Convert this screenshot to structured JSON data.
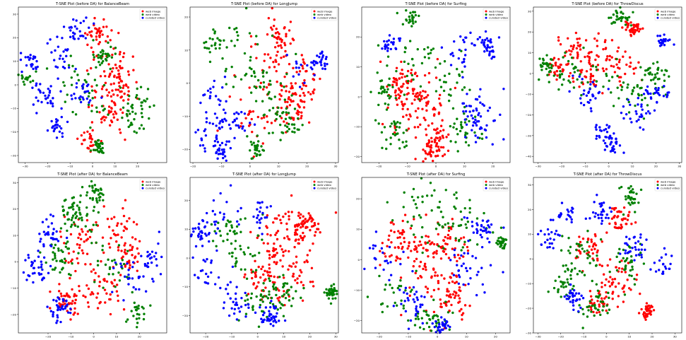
{
  "chart_data": [
    {
      "type": "scatter",
      "title": "T-SNE Plot (before DA) for BalanceBeam",
      "xlim": [
        -33,
        33
      ],
      "ylim": [
        -33,
        33
      ],
      "xticks": [
        -30,
        -20,
        -10,
        0,
        10,
        20
      ],
      "yticks": [
        -30,
        -20,
        -10,
        0,
        10,
        20,
        30
      ],
      "legend_position": "top-right",
      "series": [
        {
          "name": "web image",
          "color": "#ff0000",
          "clusters": [
            [
              10,
              10,
              6
            ],
            [
              7,
              -2,
              6
            ],
            [
              13,
              0,
              5
            ],
            [
              8,
              -13,
              5
            ],
            [
              -2,
              -24,
              3
            ],
            [
              2,
              22,
              4
            ]
          ],
          "count": 180
        },
        {
          "name": "web video",
          "color": "#008000",
          "clusters": [
            [
              0,
              -8,
              7
            ],
            [
              -8,
              5,
              6
            ],
            [
              18,
              -15,
              5
            ],
            [
              5,
              13,
              4
            ],
            [
              22,
              -8,
              5
            ],
            [
              -30,
              3,
              2
            ],
            [
              2,
              -26,
              2
            ]
          ],
          "count": 160
        },
        {
          "name": "curated video",
          "color": "#0000ff",
          "clusters": [
            [
              -15,
              10,
              7
            ],
            [
              -8,
              23,
              4
            ],
            [
              -21,
              -5,
              5
            ],
            [
              -5,
              -3,
              4
            ],
            [
              -16,
              -18,
              3
            ],
            [
              -27,
              10,
              3
            ]
          ],
          "count": 150
        }
      ]
    },
    {
      "type": "scatter",
      "title": "T-SNE Plot (before DA) for LongJump",
      "xlim": [
        -21,
        31
      ],
      "ylim": [
        -24,
        23
      ],
      "xticks": [
        -20,
        -10,
        0,
        10,
        20,
        30
      ],
      "yticks": [
        -20,
        -10,
        0,
        10,
        20
      ],
      "legend_position": "top-right",
      "series": [
        {
          "name": "web image",
          "color": "#ff0000",
          "clusters": [
            [
              10,
              14,
              5
            ],
            [
              6,
              4,
              6
            ],
            [
              18,
              0,
              5
            ],
            [
              0,
              -10,
              5
            ],
            [
              14,
              -8,
              4
            ]
          ],
          "count": 190
        },
        {
          "name": "web video",
          "color": "#008000",
          "clusters": [
            [
              -3,
              8,
              6
            ],
            [
              5,
              -2,
              5
            ],
            [
              12,
              -12,
              4
            ],
            [
              2,
              -20,
              2
            ],
            [
              -12,
              12,
              3
            ]
          ],
          "count": 150
        },
        {
          "name": "curated video",
          "color": "#0000ff",
          "clusters": [
            [
              -12,
              -7,
              5
            ],
            [
              -14,
              -15,
              4
            ],
            [
              -10,
              -20,
              2
            ],
            [
              18,
              5,
              4
            ],
            [
              24,
              6,
              2
            ],
            [
              -4,
              -12,
              3
            ]
          ],
          "count": 140
        }
      ]
    },
    {
      "type": "scatter",
      "title": "T-SNE Plot (before DA) for Surfing",
      "xlim": [
        -26,
        26
      ],
      "ylim": [
        -22,
        30
      ],
      "xticks": [
        -20,
        -10,
        0,
        10,
        20
      ],
      "yticks": [
        -20,
        -10,
        0,
        10,
        20
      ],
      "legend_position": "top-right",
      "series": [
        {
          "name": "web image",
          "color": "#ff0000",
          "clusters": [
            [
              -7,
              -2,
              6
            ],
            [
              -3,
              -10,
              6
            ],
            [
              -12,
              5,
              4
            ],
            [
              0,
              -16,
              3
            ]
          ],
          "count": 200
        },
        {
          "name": "web video",
          "color": "#008000",
          "clusters": [
            [
              -5,
              12,
              7
            ],
            [
              5,
              5,
              6
            ],
            [
              -18,
              3,
              4
            ],
            [
              -9,
              26,
              2
            ],
            [
              10,
              -12,
              4
            ],
            [
              -15,
              -12,
              4
            ]
          ],
          "count": 170
        },
        {
          "name": "curated video",
          "color": "#0000ff",
          "clusters": [
            [
              13,
              -3,
              5
            ],
            [
              16,
              -10,
              4
            ],
            [
              9,
              17,
              4
            ],
            [
              18,
              17,
              3
            ],
            [
              -16,
              18,
              2
            ]
          ],
          "count": 140
        }
      ]
    },
    {
      "type": "scatter",
      "title": "T-SNE Plot (before DA) for ThrowDiscus",
      "xlim": [
        -32,
        31
      ],
      "ylim": [
        -43,
        32
      ],
      "xticks": [
        -30,
        -20,
        -10,
        0,
        10,
        20,
        30
      ],
      "yticks": [
        -40,
        -30,
        -20,
        -10,
        0,
        10,
        20,
        30
      ],
      "legend_position": "top-right",
      "series": [
        {
          "name": "web image",
          "color": "#ff0000",
          "clusters": [
            [
              -15,
              12,
              5
            ],
            [
              -5,
              9,
              6
            ],
            [
              4,
              4,
              5
            ],
            [
              -10,
              -2,
              5
            ],
            [
              11,
              22,
              3
            ],
            [
              -21,
              4,
              4
            ]
          ],
          "count": 190
        },
        {
          "name": "web video",
          "color": "#008000",
          "clusters": [
            [
              -1,
              0,
              8
            ],
            [
              -19,
              -1,
              6
            ],
            [
              13,
              -10,
              6
            ],
            [
              5,
              27,
              3
            ],
            [
              -27,
              4,
              2
            ],
            [
              20,
              0,
              4
            ]
          ],
          "count": 170
        },
        {
          "name": "curated video",
          "color": "#0000ff",
          "clusters": [
            [
              2,
              -35,
              3
            ],
            [
              -8,
              -10,
              5
            ],
            [
              12,
              -18,
              5
            ],
            [
              20,
              -10,
              4
            ],
            [
              23,
              15,
              2
            ],
            [
              -3,
              -28,
              3
            ]
          ],
          "count": 150
        }
      ]
    },
    {
      "type": "scatter",
      "title": "T-SNE Plot (after DA) for BalanceBeam",
      "xlim": [
        -33,
        32
      ],
      "ylim": [
        -27,
        32
      ],
      "xticks": [
        -20,
        -10,
        0,
        10,
        20
      ],
      "yticks": [
        -20,
        -10,
        0,
        10,
        20,
        30
      ],
      "legend_position": "top-right",
      "series": [
        {
          "name": "web image",
          "color": "#ff0000",
          "clusters": [
            [
              3,
              -10,
              6
            ],
            [
              -5,
              5,
              7
            ],
            [
              10,
              12,
              6
            ],
            [
              -12,
              -15,
              4
            ],
            [
              16,
              2,
              4
            ]
          ],
          "count": 200
        },
        {
          "name": "web video",
          "color": "#008000",
          "clusters": [
            [
              -6,
              15,
              6
            ],
            [
              0,
              25,
              4
            ],
            [
              8,
              -3,
              6
            ],
            [
              -15,
              0,
              5
            ],
            [
              20,
              -20,
              3
            ],
            [
              -10,
              20,
              3
            ]
          ],
          "count": 180
        },
        {
          "name": "curated video",
          "color": "#0000ff",
          "clusters": [
            [
              -25,
              -3,
              4
            ],
            [
              15,
              -8,
              6
            ],
            [
              25,
              0,
              4
            ],
            [
              -20,
              10,
              4
            ],
            [
              -15,
              -18,
              3
            ]
          ],
          "count": 150
        }
      ]
    },
    {
      "type": "scatter",
      "title": "T-SNE Plot (after DA) for LongJump",
      "xlim": [
        -26,
        31
      ],
      "ylim": [
        -26,
        28
      ],
      "xticks": [
        -20,
        -10,
        0,
        10,
        20,
        30
      ],
      "yticks": [
        -20,
        -10,
        0,
        10,
        20
      ],
      "legend_position": "top-right",
      "series": [
        {
          "name": "web image",
          "color": "#ff0000",
          "clusters": [
            [
              8,
              5,
              7
            ],
            [
              15,
              -5,
              6
            ],
            [
              2,
              -8,
              5
            ],
            [
              18,
              12,
              4
            ]
          ],
          "count": 210
        },
        {
          "name": "web video",
          "color": "#008000",
          "clusters": [
            [
              -5,
              0,
              7
            ],
            [
              0,
              -15,
              5
            ],
            [
              -10,
              10,
              5
            ],
            [
              28,
              -12,
              1.5
            ],
            [
              10,
              -12,
              4
            ]
          ],
          "count": 170
        },
        {
          "name": "curated video",
          "color": "#0000ff",
          "clusters": [
            [
              -14,
              15,
              5
            ],
            [
              -18,
              -5,
              5
            ],
            [
              -8,
              -15,
              4
            ],
            [
              5,
              -20,
              3
            ],
            [
              -22,
              8,
              3
            ],
            [
              0,
              15,
              4
            ]
          ],
          "count": 160
        }
      ]
    },
    {
      "type": "scatter",
      "title": "T-SNE Plot (after DA) for Surfing",
      "xlim": [
        -26,
        25
      ],
      "ylim": [
        -24,
        27
      ],
      "xticks": [
        -20,
        -10,
        0,
        10,
        20
      ],
      "yticks": [
        -20,
        -10,
        0,
        10,
        20
      ],
      "legend_position": "top-right",
      "series": [
        {
          "name": "web image",
          "color": "#ff0000",
          "clusters": [
            [
              -3,
              -5,
              7
            ],
            [
              2,
              5,
              6
            ],
            [
              -12,
              5,
              5
            ],
            [
              5,
              -12,
              5
            ]
          ],
          "count": 210
        },
        {
          "name": "web video",
          "color": "#008000",
          "clusters": [
            [
              -5,
              15,
              7
            ],
            [
              8,
              12,
              6
            ],
            [
              -15,
              -10,
              5
            ],
            [
              22,
              6,
              1.5
            ],
            [
              -2,
              -20,
              4
            ]
          ],
          "count": 170
        },
        {
          "name": "curated video",
          "color": "#0000ff",
          "clusters": [
            [
              -18,
              2,
              5
            ],
            [
              12,
              -3,
              6
            ],
            [
              2,
              -22,
              2
            ],
            [
              -8,
              -15,
              4
            ],
            [
              15,
              10,
              3
            ]
          ],
          "count": 150
        }
      ]
    },
    {
      "type": "scatter",
      "title": "T-SNE Plot (after DA) for ThrowDiscus",
      "xlim": [
        -32,
        33
      ],
      "ylim": [
        -30,
        33
      ],
      "xticks": [
        -30,
        -20,
        -10,
        0,
        10,
        20,
        30
      ],
      "yticks": [
        -30,
        -20,
        -10,
        0,
        10,
        20,
        30
      ],
      "legend_position": "top-right",
      "series": [
        {
          "name": "web image",
          "color": "#ff0000",
          "clusters": [
            [
              5,
              15,
              4
            ],
            [
              6,
              -8,
              6
            ],
            [
              -3,
              -17,
              4
            ],
            [
              -8,
              3,
              4
            ],
            [
              18,
              -21,
              2
            ]
          ],
          "count": 190
        },
        {
          "name": "web video",
          "color": "#008000",
          "clusters": [
            [
              -10,
              0,
              7
            ],
            [
              10,
              0,
              6
            ],
            [
              -5,
              -20,
              5
            ],
            [
              10,
              25,
              3
            ],
            [
              -18,
              -10,
              4
            ]
          ],
          "count": 170
        },
        {
          "name": "curated video",
          "color": "#0000ff",
          "clusters": [
            [
              -2,
              19,
              3
            ],
            [
              12,
              4,
              4
            ],
            [
              -25,
              8,
              3
            ],
            [
              -18,
              18,
              4
            ],
            [
              25,
              -2,
              3
            ],
            [
              -15,
              -15,
              3
            ]
          ],
          "count": 150
        }
      ]
    }
  ]
}
